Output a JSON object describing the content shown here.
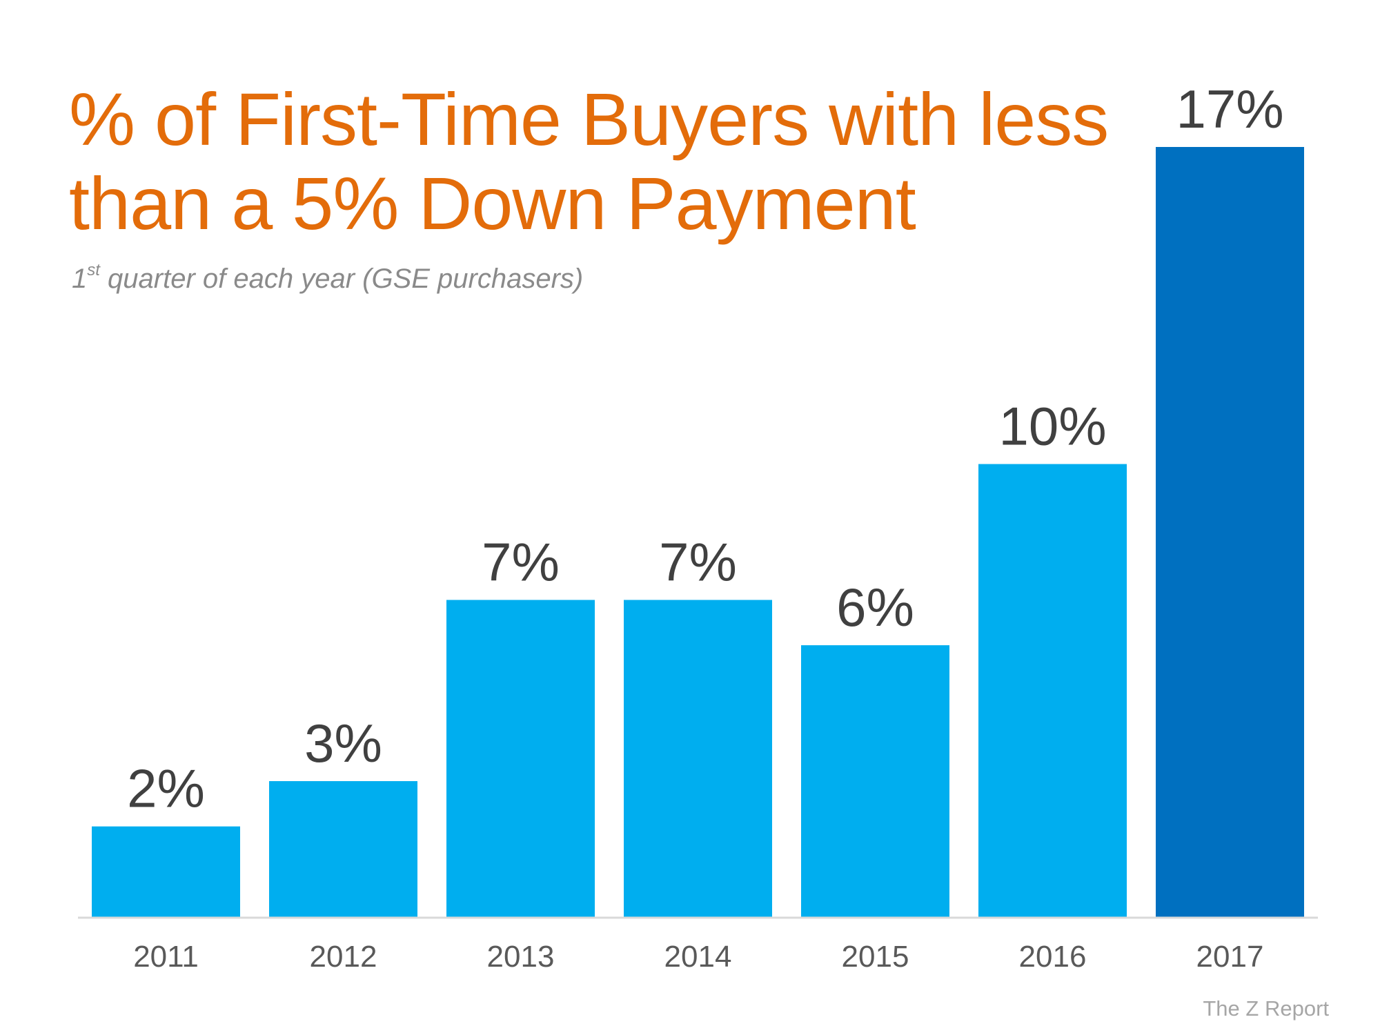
{
  "title_line1": "% of First-Time Buyers with less",
  "title_line2": "than a 5% Down Payment",
  "subtitle_prefix": "1",
  "subtitle_sup": "st",
  "subtitle_rest": " quarter of each year (GSE purchasers)",
  "source": "The Z Report",
  "colors": {
    "title": "#E36C0A",
    "bar": "#00AEEF",
    "highlight": "#0070C0",
    "label": "#404040",
    "axis": "#D9D9D9"
  },
  "chart_data": {
    "type": "bar",
    "title": "% of First-Time Buyers with less than a 5% Down Payment",
    "subtitle": "1st quarter of each year (GSE purchasers)",
    "categories": [
      "2011",
      "2012",
      "2013",
      "2014",
      "2015",
      "2016",
      "2017"
    ],
    "values": [
      2,
      3,
      7,
      7,
      6,
      10,
      17
    ],
    "data_labels": [
      "2%",
      "3%",
      "7%",
      "7%",
      "6%",
      "10%",
      "17%"
    ],
    "highlight_index": 6,
    "xlabel": "",
    "ylabel": "",
    "ylim": [
      0,
      17
    ],
    "grid": false,
    "legend": "none"
  }
}
